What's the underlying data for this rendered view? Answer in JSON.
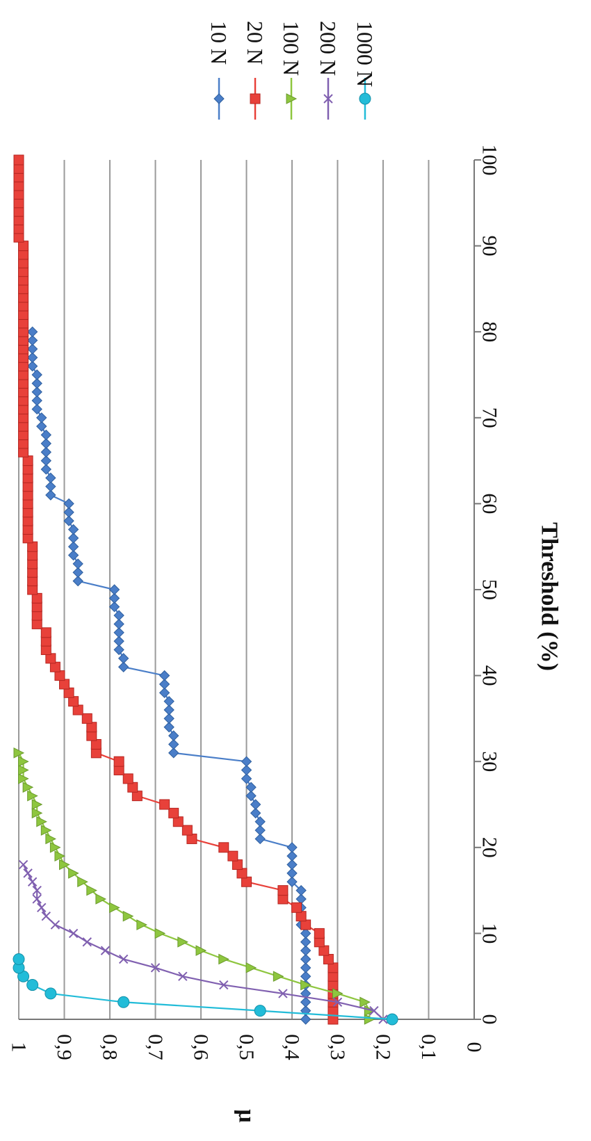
{
  "chart_data": {
    "type": "line",
    "title": "",
    "xlabel": "Threshold (%)",
    "ylabel": "μ",
    "xlim": [
      0,
      100
    ],
    "ylim": [
      0,
      1
    ],
    "x_ticks": [
      "0",
      "10",
      "20",
      "30",
      "40",
      "50",
      "60",
      "70",
      "80",
      "90",
      "100"
    ],
    "y_ticks": [
      "0",
      "0,1",
      "0,2",
      "0,3",
      "0,4",
      "0,5",
      "0,6",
      "0,7",
      "0,8",
      "0,9",
      "1"
    ],
    "grid": "horizontal",
    "legend_position": "right",
    "orientation": "rotated 90° clockwise",
    "series": [
      {
        "name": "10 N",
        "color": "#4a7ec8",
        "marker": "diamond",
        "points": [
          [
            0,
            0.37
          ],
          [
            1,
            0.37
          ],
          [
            2,
            0.37
          ],
          [
            3,
            0.37
          ],
          [
            4,
            0.37
          ],
          [
            5,
            0.37
          ],
          [
            6,
            0.37
          ],
          [
            7,
            0.37
          ],
          [
            8,
            0.37
          ],
          [
            9,
            0.37
          ],
          [
            10,
            0.37
          ],
          [
            11,
            0.38
          ],
          [
            12,
            0.38
          ],
          [
            13,
            0.38
          ],
          [
            14,
            0.38
          ],
          [
            15,
            0.38
          ],
          [
            16,
            0.4
          ],
          [
            17,
            0.4
          ],
          [
            18,
            0.4
          ],
          [
            19,
            0.4
          ],
          [
            20,
            0.4
          ],
          [
            21,
            0.47
          ],
          [
            22,
            0.47
          ],
          [
            23,
            0.47
          ],
          [
            24,
            0.48
          ],
          [
            25,
            0.48
          ],
          [
            26,
            0.49
          ],
          [
            27,
            0.49
          ],
          [
            28,
            0.5
          ],
          [
            29,
            0.5
          ],
          [
            30,
            0.5
          ],
          [
            31,
            0.66
          ],
          [
            32,
            0.66
          ],
          [
            33,
            0.66
          ],
          [
            34,
            0.67
          ],
          [
            35,
            0.67
          ],
          [
            36,
            0.67
          ],
          [
            37,
            0.67
          ],
          [
            38,
            0.68
          ],
          [
            39,
            0.68
          ],
          [
            40,
            0.68
          ],
          [
            41,
            0.77
          ],
          [
            42,
            0.77
          ],
          [
            43,
            0.78
          ],
          [
            44,
            0.78
          ],
          [
            45,
            0.78
          ],
          [
            46,
            0.78
          ],
          [
            47,
            0.78
          ],
          [
            48,
            0.79
          ],
          [
            49,
            0.79
          ],
          [
            50,
            0.79
          ],
          [
            51,
            0.87
          ],
          [
            52,
            0.87
          ],
          [
            53,
            0.87
          ],
          [
            54,
            0.88
          ],
          [
            55,
            0.88
          ],
          [
            56,
            0.88
          ],
          [
            57,
            0.88
          ],
          [
            58,
            0.89
          ],
          [
            59,
            0.89
          ],
          [
            60,
            0.89
          ],
          [
            61,
            0.93
          ],
          [
            62,
            0.93
          ],
          [
            63,
            0.93
          ],
          [
            64,
            0.94
          ],
          [
            65,
            0.94
          ],
          [
            66,
            0.94
          ],
          [
            67,
            0.94
          ],
          [
            68,
            0.94
          ],
          [
            69,
            0.95
          ],
          [
            70,
            0.95
          ],
          [
            71,
            0.96
          ],
          [
            72,
            0.96
          ],
          [
            73,
            0.96
          ],
          [
            74,
            0.96
          ],
          [
            75,
            0.96
          ],
          [
            76,
            0.97
          ],
          [
            77,
            0.97
          ],
          [
            78,
            0.97
          ],
          [
            79,
            0.97
          ],
          [
            80,
            0.97
          ]
        ]
      },
      {
        "name": "20 N",
        "color": "#e8413a",
        "marker": "square",
        "points": [
          [
            0,
            0.31
          ],
          [
            1,
            0.31
          ],
          [
            2,
            0.31
          ],
          [
            3,
            0.31
          ],
          [
            4,
            0.31
          ],
          [
            5,
            0.31
          ],
          [
            6,
            0.31
          ],
          [
            7,
            0.32
          ],
          [
            8,
            0.33
          ],
          [
            9,
            0.34
          ],
          [
            10,
            0.34
          ],
          [
            11,
            0.37
          ],
          [
            12,
            0.38
          ],
          [
            13,
            0.39
          ],
          [
            14,
            0.42
          ],
          [
            15,
            0.42
          ],
          [
            16,
            0.5
          ],
          [
            17,
            0.51
          ],
          [
            18,
            0.52
          ],
          [
            19,
            0.53
          ],
          [
            20,
            0.55
          ],
          [
            21,
            0.62
          ],
          [
            22,
            0.63
          ],
          [
            23,
            0.65
          ],
          [
            24,
            0.66
          ],
          [
            25,
            0.68
          ],
          [
            26,
            0.74
          ],
          [
            27,
            0.75
          ],
          [
            28,
            0.76
          ],
          [
            29,
            0.78
          ],
          [
            30,
            0.78
          ],
          [
            31,
            0.83
          ],
          [
            32,
            0.83
          ],
          [
            33,
            0.84
          ],
          [
            34,
            0.84
          ],
          [
            35,
            0.85
          ],
          [
            36,
            0.87
          ],
          [
            37,
            0.88
          ],
          [
            38,
            0.89
          ],
          [
            39,
            0.9
          ],
          [
            40,
            0.91
          ],
          [
            41,
            0.92
          ],
          [
            42,
            0.93
          ],
          [
            43,
            0.94
          ],
          [
            44,
            0.94
          ],
          [
            45,
            0.94
          ],
          [
            46,
            0.96
          ],
          [
            47,
            0.96
          ],
          [
            48,
            0.96
          ],
          [
            49,
            0.96
          ],
          [
            50,
            0.97
          ],
          [
            51,
            0.97
          ],
          [
            52,
            0.97
          ],
          [
            53,
            0.97
          ],
          [
            54,
            0.97
          ],
          [
            55,
            0.97
          ],
          [
            56,
            0.98
          ],
          [
            57,
            0.98
          ],
          [
            58,
            0.98
          ],
          [
            59,
            0.98
          ],
          [
            60,
            0.98
          ],
          [
            61,
            0.98
          ],
          [
            62,
            0.98
          ],
          [
            63,
            0.98
          ],
          [
            64,
            0.98
          ],
          [
            65,
            0.98
          ],
          [
            66,
            0.99
          ],
          [
            67,
            0.99
          ],
          [
            68,
            0.99
          ],
          [
            69,
            0.99
          ],
          [
            70,
            0.99
          ],
          [
            71,
            0.99
          ],
          [
            72,
            0.99
          ],
          [
            73,
            0.99
          ],
          [
            74,
            0.99
          ],
          [
            75,
            0.99
          ],
          [
            76,
            0.99
          ],
          [
            77,
            0.99
          ],
          [
            78,
            0.99
          ],
          [
            79,
            0.99
          ],
          [
            80,
            0.99
          ],
          [
            81,
            0.99
          ],
          [
            82,
            0.99
          ],
          [
            83,
            0.99
          ],
          [
            84,
            0.99
          ],
          [
            85,
            0.99
          ],
          [
            86,
            0.99
          ],
          [
            87,
            0.99
          ],
          [
            88,
            0.99
          ],
          [
            89,
            0.99
          ],
          [
            90,
            0.99
          ],
          [
            91,
            1.0
          ],
          [
            92,
            1.0
          ],
          [
            93,
            1.0
          ],
          [
            94,
            1.0
          ],
          [
            95,
            1.0
          ],
          [
            96,
            1.0
          ],
          [
            97,
            1.0
          ],
          [
            98,
            1.0
          ],
          [
            99,
            1.0
          ],
          [
            100,
            1.0
          ]
        ]
      },
      {
        "name": "100 N",
        "color": "#8ec63f",
        "marker": "triangle",
        "points": [
          [
            0,
            0.23
          ],
          [
            1,
            0.23
          ],
          [
            2,
            0.24
          ],
          [
            3,
            0.3
          ],
          [
            4,
            0.37
          ],
          [
            5,
            0.43
          ],
          [
            6,
            0.49
          ],
          [
            7,
            0.55
          ],
          [
            8,
            0.6
          ],
          [
            9,
            0.64
          ],
          [
            10,
            0.69
          ],
          [
            11,
            0.73
          ],
          [
            12,
            0.76
          ],
          [
            13,
            0.79
          ],
          [
            14,
            0.82
          ],
          [
            15,
            0.84
          ],
          [
            16,
            0.86
          ],
          [
            17,
            0.88
          ],
          [
            18,
            0.9
          ],
          [
            19,
            0.91
          ],
          [
            20,
            0.92
          ],
          [
            21,
            0.93
          ],
          [
            22,
            0.94
          ],
          [
            23,
            0.95
          ],
          [
            24,
            0.96
          ],
          [
            25,
            0.96
          ],
          [
            26,
            0.97
          ],
          [
            27,
            0.98
          ],
          [
            28,
            0.99
          ],
          [
            29,
            0.99
          ],
          [
            30,
            0.99
          ],
          [
            31,
            1.0
          ]
        ]
      },
      {
        "name": "200 N",
        "color": "#8060b0",
        "marker": "x",
        "points": [
          [
            0,
            0.2
          ],
          [
            1,
            0.22
          ],
          [
            2,
            0.3
          ],
          [
            3,
            0.42
          ],
          [
            4,
            0.55
          ],
          [
            5,
            0.64
          ],
          [
            6,
            0.7
          ],
          [
            7,
            0.77
          ],
          [
            8,
            0.81
          ],
          [
            9,
            0.85
          ],
          [
            10,
            0.88
          ],
          [
            11,
            0.92
          ],
          [
            12,
            0.94
          ],
          [
            13,
            0.95
          ],
          [
            14,
            0.96
          ],
          [
            15,
            0.96
          ],
          [
            16,
            0.97
          ],
          [
            17,
            0.98
          ],
          [
            18,
            0.99
          ]
        ]
      },
      {
        "name": "1000 N",
        "color": "#22bcd8",
        "marker": "circle",
        "points": [
          [
            0,
            0.18
          ],
          [
            1,
            0.47
          ],
          [
            2,
            0.77
          ],
          [
            3,
            0.93
          ],
          [
            4,
            0.97
          ],
          [
            5,
            0.99
          ],
          [
            6,
            1.0
          ],
          [
            7,
            1.0
          ]
        ]
      }
    ]
  }
}
